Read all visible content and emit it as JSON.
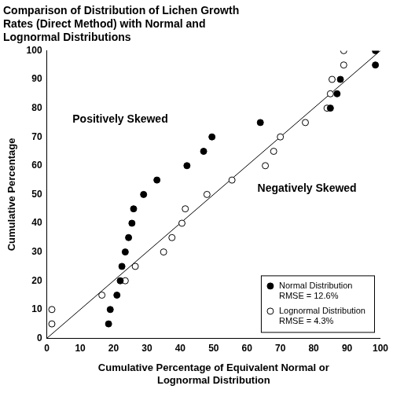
{
  "chart_data": {
    "type": "scatter",
    "title": [
      "Comparison of Distribution of Lichen Growth",
      "Rates (Direct Method) with Normal and",
      "Lognormal Distributions"
    ],
    "x_label": [
      "Cumulative Percentage of Equivalent Normal or",
      "Lognormal Distribution"
    ],
    "y_label": "Cumulative Percentage",
    "xlim": [
      0,
      100
    ],
    "ylim": [
      0,
      100
    ],
    "xticks": [
      0,
      10,
      20,
      30,
      40,
      50,
      60,
      70,
      80,
      90,
      100
    ],
    "yticks": [
      0,
      10,
      20,
      30,
      40,
      50,
      60,
      70,
      80,
      90,
      100
    ],
    "grid": false,
    "legend": "lower right",
    "annotations": [
      "Positively Skewed",
      "Negatively Skewed"
    ],
    "series": [
      {
        "name": "Normal Distribution\nRMSE = 12.6%",
        "color": "#000000",
        "marker": "filled",
        "x": [
          18.5,
          19,
          21,
          22,
          22.5,
          23.5,
          24.5,
          25.5,
          26,
          29,
          33,
          42,
          47,
          49.5,
          64,
          85,
          87,
          88,
          98.5,
          98.5
        ],
        "values": [
          5,
          10,
          15,
          20,
          25,
          30,
          35,
          40,
          45,
          50,
          55,
          60,
          65,
          70,
          75,
          80,
          85,
          90,
          95,
          100
        ]
      },
      {
        "name": "Lognormal Distribution\nRMSE = 4.3%",
        "color": "#000000",
        "marker": "open",
        "x": [
          1.5,
          1.5,
          16.5,
          23.5,
          26.5,
          35,
          37.5,
          40.5,
          41.5,
          48,
          55.5,
          65.5,
          68,
          70,
          77.5,
          84,
          85,
          85.5,
          89,
          89
        ],
        "values": [
          5,
          10,
          15,
          20,
          25,
          30,
          35,
          40,
          45,
          50,
          55,
          60,
          65,
          70,
          75,
          80,
          85,
          90,
          95,
          100
        ]
      },
      {
        "type": "line",
        "color": "#000000",
        "line_style": "solid",
        "x": [
          0,
          100
        ],
        "values": [
          0,
          100
        ]
      }
    ]
  }
}
